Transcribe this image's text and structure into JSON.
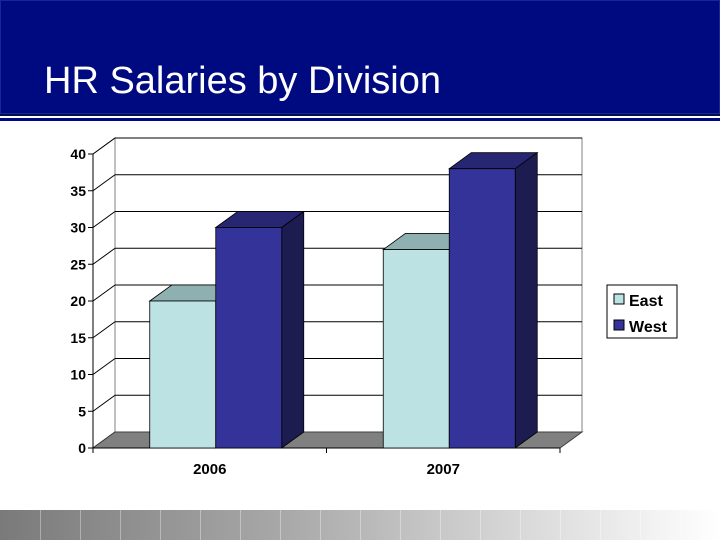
{
  "slide": {
    "title": "HR Salaries by Division",
    "colors": {
      "title_band": "#000a80",
      "title_text": "#ffffff"
    }
  },
  "chart_data": {
    "type": "bar",
    "style": "3d-clustered-column",
    "title": "",
    "xlabel": "",
    "ylabel": "",
    "categories": [
      "2006",
      "2007"
    ],
    "series": [
      {
        "name": "East",
        "values": [
          20,
          27
        ],
        "color": "#bde2e4"
      },
      {
        "name": "West",
        "values": [
          30,
          38
        ],
        "color": "#333399"
      }
    ],
    "ylim": [
      0,
      40
    ],
    "yticks": [
      "0",
      "5",
      "10",
      "15",
      "20",
      "25",
      "30",
      "35",
      "40"
    ],
    "grid": true,
    "legend": "right"
  }
}
